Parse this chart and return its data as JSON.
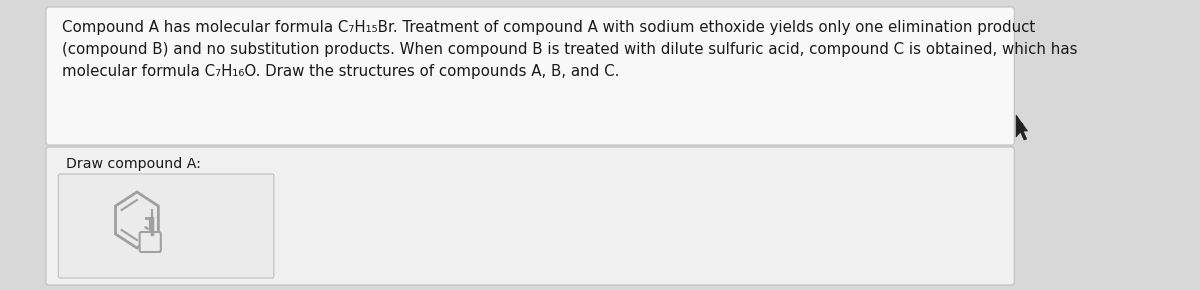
{
  "background_color": "#d8d8d8",
  "top_box_color": "#f8f8f8",
  "bottom_box_color": "#f0f0f0",
  "top_box_border": "#c0c0c0",
  "bottom_box_border": "#c0c0c0",
  "inner_box_border": "#b8b8b8",
  "inner_box_color": "#ebebeb",
  "line1": "Compound A has molecular formula C₇H₁₅Br. Treatment of compound A with sodium ethoxide yields only one elimination product",
  "line2": "(compound B) and no substitution products. When compound B is treated with dilute sulfuric acid, compound C is obtained, which has",
  "line3": "molecular formula C₇H₁₆O. Draw the structures of compounds A, B, and C.",
  "draw_label": "Draw compound A:",
  "font_size_body": 10.8,
  "font_size_label": 10.2,
  "text_color": "#1a1a1a",
  "icon_color": "#a0a0a0",
  "cursor_color": "#222222"
}
